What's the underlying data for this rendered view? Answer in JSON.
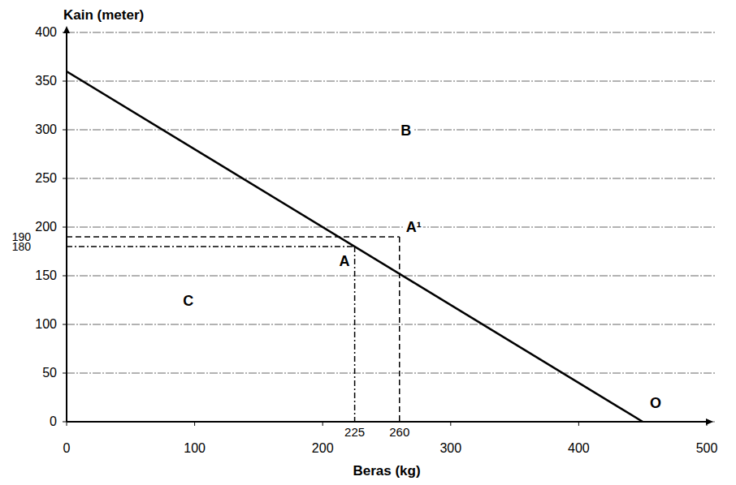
{
  "chart_data": {
    "type": "line",
    "x_label": "Beras (kg)",
    "y_label": "Kain (meter)",
    "xlim": [
      0,
      500
    ],
    "ylim": [
      0,
      400
    ],
    "xticks": [
      0,
      100,
      200,
      300,
      400,
      500
    ],
    "yticks": [
      0,
      50,
      100,
      150,
      200,
      250,
      300,
      350,
      400
    ],
    "grid": true,
    "series": [
      {
        "color": "#000000",
        "x": [
          0,
          450
        ],
        "values": [
          360,
          0
        ]
      }
    ],
    "points": [
      {
        "label": "A",
        "x": 225,
        "y": 180,
        "line_style": "dashdot"
      },
      {
        "label": "A¹",
        "x": 260,
        "y": 190,
        "line_style": "dashed"
      }
    ],
    "region_labels": [
      {
        "label": "B",
        "x": 265,
        "y": 300
      },
      {
        "label": "C",
        "x": 95,
        "y": 125
      },
      {
        "label": "O",
        "x": 460,
        "y": 20
      }
    ]
  }
}
